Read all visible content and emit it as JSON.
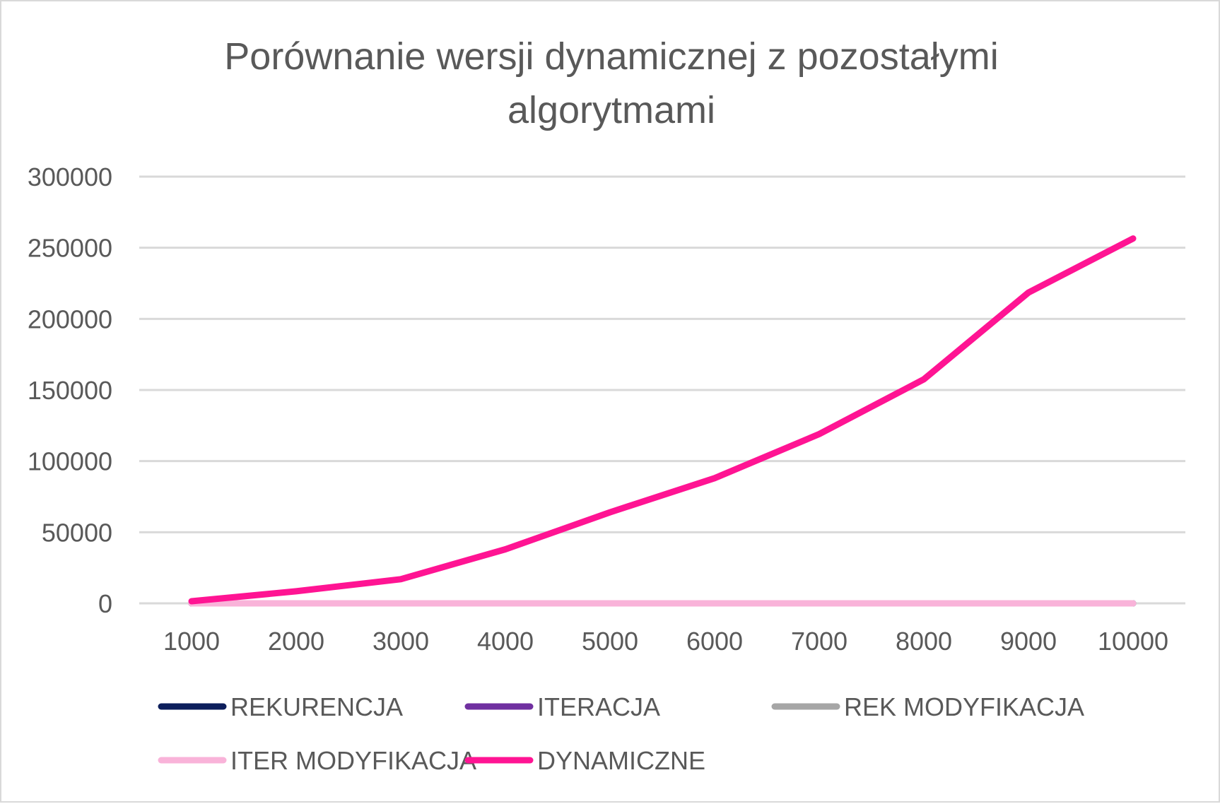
{
  "chart_data": {
    "type": "line",
    "title": "Porównanie wersji dynamicznej z pozostałymi algorytmami",
    "title_lines": [
      "Porównanie wersji dynamicznej z pozostałymi",
      "algorytmami"
    ],
    "xlabel": "",
    "ylabel": "",
    "categories": [
      "1000",
      "2000",
      "3000",
      "4000",
      "5000",
      "6000",
      "7000",
      "8000",
      "9000",
      "10000"
    ],
    "ylim": [
      0,
      300000
    ],
    "yticks": [
      0,
      50000,
      100000,
      150000,
      200000,
      250000,
      300000
    ],
    "grid": true,
    "legend_position": "bottom",
    "series": [
      {
        "name": "REKURENCJA",
        "color": "#0d1f5c",
        "values": [
          0,
          0,
          0,
          0,
          0,
          0,
          0,
          0,
          0,
          0
        ]
      },
      {
        "name": "ITERACJA",
        "color": "#7030a0",
        "values": [
          0,
          0,
          0,
          0,
          0,
          0,
          0,
          0,
          0,
          0
        ]
      },
      {
        "name": "REK MODYFIKACJA",
        "color": "#a6a6a6",
        "values": [
          0,
          0,
          0,
          0,
          0,
          0,
          0,
          0,
          0,
          0
        ]
      },
      {
        "name": "ITER MODYFIKACJA",
        "color": "#f9b3d9",
        "values": [
          0,
          0,
          0,
          0,
          0,
          0,
          0,
          0,
          0,
          0
        ]
      },
      {
        "name": "DYNAMICZNE",
        "color": "#ff1493",
        "values": [
          1500,
          8500,
          17000,
          38000,
          64000,
          88000,
          119000,
          157500,
          218500,
          256500
        ]
      }
    ]
  }
}
